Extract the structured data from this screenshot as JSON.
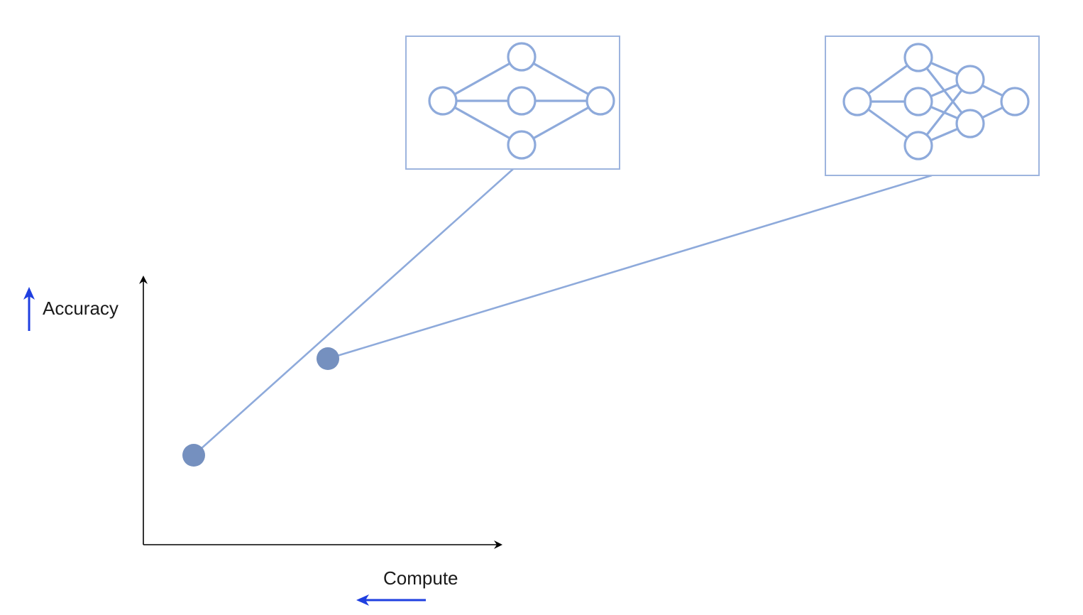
{
  "labels": {
    "y_axis": "Accuracy",
    "x_axis": "Compute"
  },
  "colors": {
    "network": "#8eaadb",
    "point": "#7590bf",
    "direction_arrow": "#1f3fe0",
    "axis": "#000000"
  },
  "networks": [
    {
      "name": "shallow-network",
      "layers": [
        1,
        3,
        1
      ]
    },
    {
      "name": "deep-network",
      "layers": [
        1,
        3,
        2,
        1
      ]
    }
  ],
  "points": [
    {
      "name": "point-shallow",
      "links_to": "shallow-network"
    },
    {
      "name": "point-deep",
      "links_to": "deep-network"
    }
  ]
}
